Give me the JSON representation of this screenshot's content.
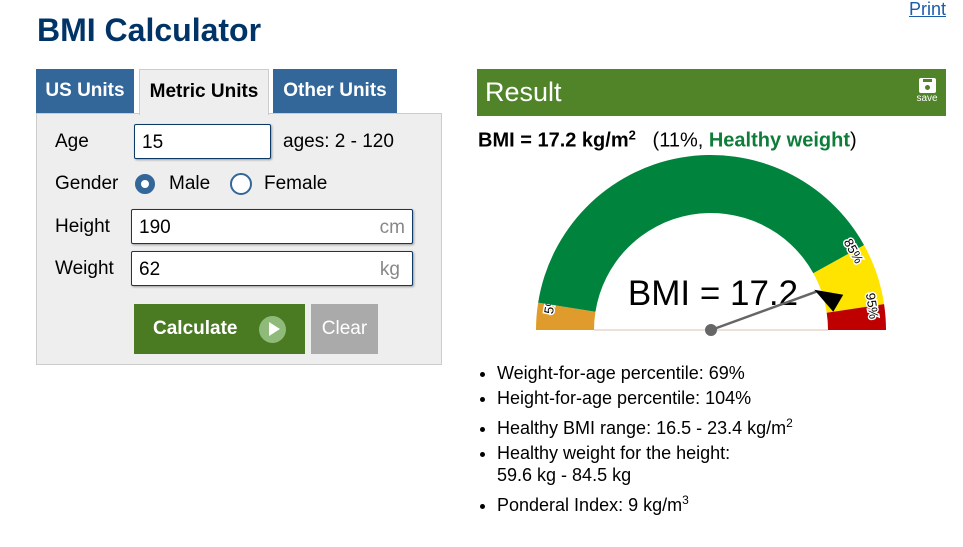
{
  "header": {
    "title": "BMI Calculator",
    "print": "Print"
  },
  "tabs": [
    {
      "label": "US Units"
    },
    {
      "label": "Metric Units",
      "active": true
    },
    {
      "label": "Other Units"
    }
  ],
  "form": {
    "age": {
      "label": "Age",
      "value": "15",
      "hint": "ages: 2 - 120"
    },
    "gender": {
      "label": "Gender",
      "options": [
        "Male",
        "Female"
      ],
      "selected": "Male"
    },
    "height": {
      "label": "Height",
      "value": "190",
      "unit": "cm"
    },
    "weight": {
      "label": "Weight",
      "value": "62",
      "unit": "kg"
    },
    "calculate": "Calculate",
    "clear": "Clear"
  },
  "result": {
    "title": "Result",
    "save": "save",
    "bmi_prefix": "BMI = 17.2 kg/m",
    "bmi_sup": "2",
    "pct_open": "(11%, ",
    "category": "Healthy weight",
    "pct_close": ")",
    "gauge": {
      "label": "BMI = 17.2",
      "value_percentile": 11,
      "segments": [
        {
          "from": 0,
          "to": 5,
          "color": "#e09b2d",
          "label": "5%"
        },
        {
          "from": 5,
          "to": 85,
          "color": "#00843d"
        },
        {
          "from": 85,
          "to": 95,
          "color": "#ffe400",
          "label": "85%"
        },
        {
          "from": 95,
          "to": 100,
          "color": "#bf0000",
          "label": "95%"
        }
      ]
    },
    "details": [
      {
        "text": "Weight-for-age percentile: 69%"
      },
      {
        "text": "Height-for-age percentile: 104%"
      },
      {
        "text": "Healthy BMI range: 16.5 - 23.4 kg/m",
        "sup": "2"
      },
      {
        "text": "Healthy weight for the height:",
        "line2": "59.6 kg - 84.5 kg"
      },
      {
        "text": "Ponderal Index: 9 kg/m",
        "sup": "3"
      }
    ]
  },
  "colors": {
    "title": "#003366",
    "tab": "#336699",
    "result_bar": "#518329",
    "healthy": "#0f7d3a"
  }
}
